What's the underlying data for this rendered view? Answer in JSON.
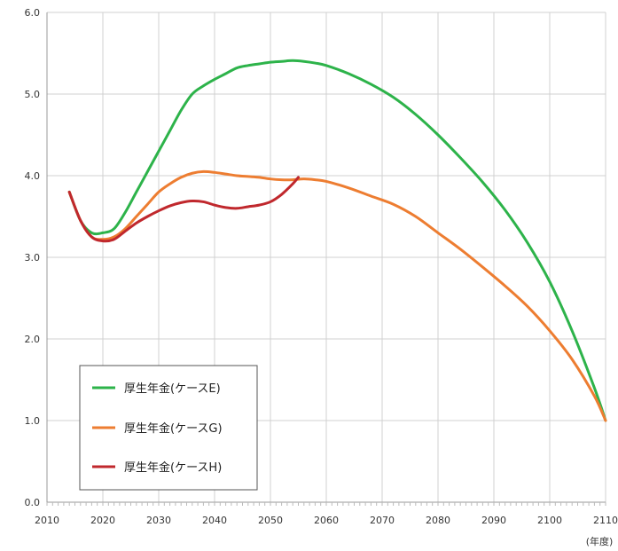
{
  "chart_data": {
    "type": "line",
    "title": "",
    "xlabel": "",
    "ylabel": "",
    "x_unit_label": "(年度)",
    "xlim": [
      2010,
      2110
    ],
    "ylim": [
      0.0,
      6.0
    ],
    "x_ticks": [
      "2010",
      "2020",
      "2030",
      "2040",
      "2050",
      "2060",
      "2070",
      "2080",
      "2090",
      "2100",
      "2110"
    ],
    "y_ticks": [
      "0.0",
      "1.0",
      "2.0",
      "3.0",
      "4.0",
      "5.0",
      "6.0"
    ],
    "grid": true,
    "legend_position": "bottom-left",
    "series": [
      {
        "name": "厚生年金(ケースE)",
        "color": "#2db34a",
        "x": [
          2014,
          2016,
          2018,
          2020,
          2022,
          2024,
          2026,
          2028,
          2030,
          2032,
          2034,
          2036,
          2038,
          2040,
          2042,
          2044,
          2046,
          2048,
          2050,
          2052,
          2054,
          2056,
          2058,
          2060,
          2064,
          2068,
          2072,
          2076,
          2080,
          2084,
          2088,
          2092,
          2096,
          2100,
          2104,
          2108,
          2110
        ],
        "y": [
          3.8,
          3.45,
          3.3,
          3.3,
          3.35,
          3.55,
          3.8,
          4.05,
          4.3,
          4.55,
          4.8,
          5.0,
          5.1,
          5.18,
          5.25,
          5.32,
          5.35,
          5.37,
          5.39,
          5.4,
          5.41,
          5.4,
          5.38,
          5.35,
          5.25,
          5.12,
          4.96,
          4.75,
          4.5,
          4.22,
          3.92,
          3.58,
          3.18,
          2.7,
          2.1,
          1.4,
          1.0
        ]
      },
      {
        "name": "厚生年金(ケースG)",
        "color": "#ed7d31",
        "x": [
          2014,
          2016,
          2018,
          2020,
          2022,
          2024,
          2026,
          2028,
          2030,
          2032,
          2034,
          2036,
          2038,
          2040,
          2042,
          2044,
          2046,
          2048,
          2050,
          2052,
          2054,
          2056,
          2058,
          2060,
          2064,
          2068,
          2072,
          2076,
          2080,
          2084,
          2088,
          2092,
          2096,
          2100,
          2104,
          2108,
          2110
        ],
        "y": [
          3.8,
          3.45,
          3.25,
          3.22,
          3.25,
          3.35,
          3.5,
          3.65,
          3.8,
          3.9,
          3.98,
          4.03,
          4.05,
          4.04,
          4.02,
          4.0,
          3.99,
          3.98,
          3.96,
          3.95,
          3.95,
          3.96,
          3.95,
          3.93,
          3.85,
          3.75,
          3.65,
          3.5,
          3.3,
          3.1,
          2.88,
          2.65,
          2.4,
          2.1,
          1.75,
          1.3,
          1.0
        ]
      },
      {
        "name": "厚生年金(ケースH)",
        "color": "#c0282d",
        "x": [
          2014,
          2016,
          2018,
          2020,
          2022,
          2024,
          2026,
          2028,
          2030,
          2032,
          2034,
          2036,
          2038,
          2040,
          2042,
          2044,
          2046,
          2048,
          2050,
          2052,
          2054,
          2055
        ],
        "y": [
          3.8,
          3.45,
          3.25,
          3.2,
          3.22,
          3.32,
          3.42,
          3.5,
          3.57,
          3.63,
          3.67,
          3.69,
          3.68,
          3.64,
          3.61,
          3.6,
          3.62,
          3.64,
          3.68,
          3.77,
          3.9,
          3.98
        ]
      }
    ]
  }
}
